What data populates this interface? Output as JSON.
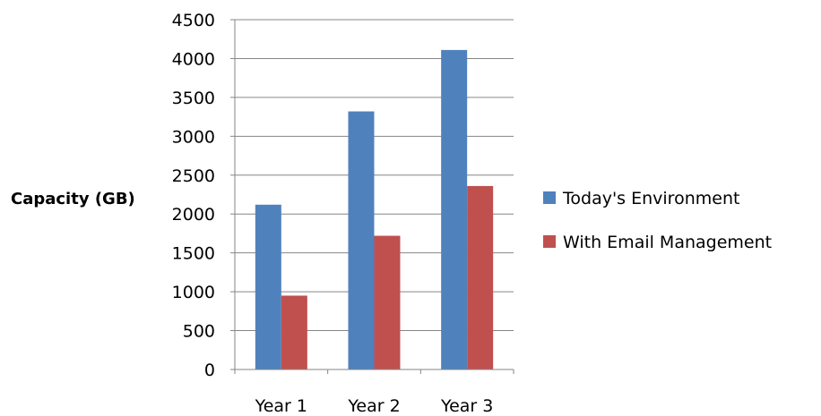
{
  "chart_data": {
    "type": "bar",
    "title": "",
    "xlabel": "",
    "ylabel": "Capacity (GB)",
    "categories": [
      "Year 1",
      "Year 2",
      "Year 3"
    ],
    "series": [
      {
        "name": "Today's Environment",
        "color": "#4f81bd",
        "values": [
          2120,
          3320,
          4110
        ]
      },
      {
        "name": "With Email Management",
        "color": "#c0504d",
        "values": [
          950,
          1720,
          2360
        ]
      }
    ],
    "ylim": [
      0,
      4500
    ],
    "yticks": [
      0,
      500,
      1000,
      1500,
      2000,
      2500,
      3000,
      3500,
      4000,
      4500
    ],
    "grid": true,
    "legend_position": "right"
  }
}
